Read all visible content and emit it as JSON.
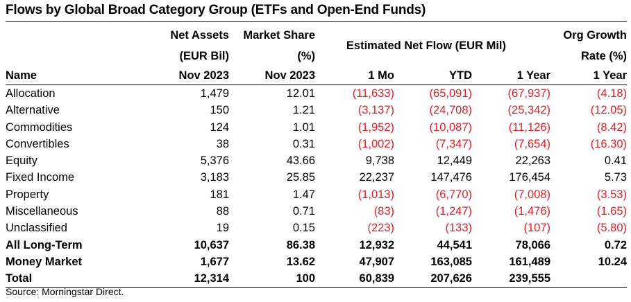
{
  "title": "Flows by Global Broad Category Group (ETFs and Open-End Funds)",
  "header": {
    "net_assets": [
      "Net Assets",
      "(EUR Bil)",
      "Nov 2023"
    ],
    "market_share": [
      "Market Share",
      "(%)",
      "Nov 2023"
    ],
    "net_flow": "Estimated Net Flow (EUR Mil)",
    "org_growth": [
      "Org Growth",
      "Rate (%)",
      "1 Year"
    ],
    "name": "Name",
    "mo": "1 Mo",
    "ytd": "YTD",
    "year": "1 Year"
  },
  "rows": [
    {
      "name": "Allocation",
      "assets": "1,479",
      "share": "12.01",
      "mo": "(11,633)",
      "ytd": "(65,091)",
      "year": "(67,937)",
      "growth": "(4.18)"
    },
    {
      "name": "Alternative",
      "assets": "150",
      "share": "1.21",
      "mo": "(3,137)",
      "ytd": "(24,708)",
      "year": "(25,342)",
      "growth": "(12.05)"
    },
    {
      "name": "Commodities",
      "assets": "124",
      "share": "1.01",
      "mo": "(1,952)",
      "ytd": "(10,087)",
      "year": "(11,126)",
      "growth": "(8.42)"
    },
    {
      "name": "Convertibles",
      "assets": "38",
      "share": "0.31",
      "mo": "(1,002)",
      "ytd": "(7,347)",
      "year": "(7,654)",
      "growth": "(16.30)"
    },
    {
      "name": "Equity",
      "assets": "5,376",
      "share": "43.66",
      "mo": "9,738",
      "ytd": "12,449",
      "year": "22,263",
      "growth": "0.41"
    },
    {
      "name": "Fixed Income",
      "assets": "3,183",
      "share": "25.85",
      "mo": "22,237",
      "ytd": "147,476",
      "year": "176,454",
      "growth": "5.73"
    },
    {
      "name": "Property",
      "assets": "181",
      "share": "1.47",
      "mo": "(1,013)",
      "ytd": "(6,770)",
      "year": "(7,008)",
      "growth": "(3.53)"
    },
    {
      "name": "Miscellaneous",
      "assets": "88",
      "share": "0.71",
      "mo": "(83)",
      "ytd": "(1,247)",
      "year": "(1,476)",
      "growth": "(1.65)"
    },
    {
      "name": "Unclassified",
      "assets": "19",
      "share": "0.15",
      "mo": "(223)",
      "ytd": "(133)",
      "year": "(107)",
      "growth": "(5.80)"
    },
    {
      "name": "All Long-Term",
      "assets": "10,637",
      "share": "86.38",
      "mo": "12,932",
      "ytd": "44,541",
      "year": "78,066",
      "growth": "0.72"
    },
    {
      "name": "Money Market",
      "assets": "1,677",
      "share": "13.62",
      "mo": "47,907",
      "ytd": "163,085",
      "year": "161,489",
      "growth": "10.24"
    },
    {
      "name": "Total",
      "assets": "12,314",
      "share": "100",
      "mo": "60,839",
      "ytd": "207,626",
      "year": "239,555",
      "growth": ""
    }
  ],
  "source": "Source: Morningstar Direct.",
  "colors": {
    "negative": "#e0202a",
    "text": "#000000",
    "background": "#ffffff"
  }
}
